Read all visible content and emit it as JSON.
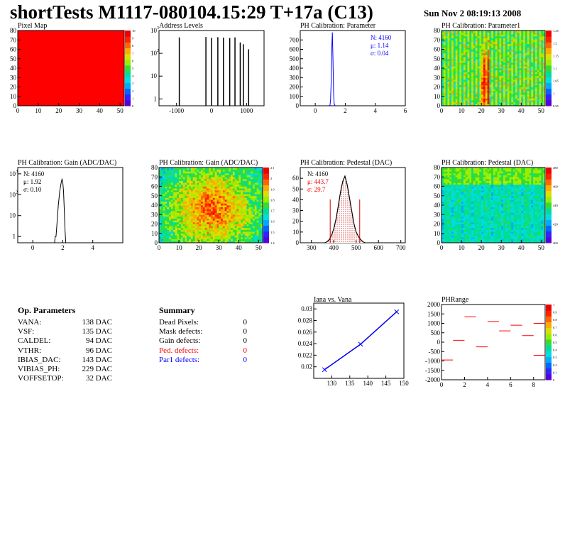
{
  "header": {
    "title": "shortTests M1117-080104.15:29 T+17a (C13)",
    "date": "Sun Nov  2 08:19:13 2008"
  },
  "panels": {
    "pixel_map": {
      "title": "Pixel Map",
      "palette_ticks": [
        "0",
        "1",
        "2",
        "3",
        "4",
        "5",
        "6",
        "7",
        "8",
        "9",
        "10"
      ]
    },
    "address_levels": {
      "title": "Address Levels"
    },
    "ph_parameter": {
      "title": "PH Calibration: Parameter",
      "stats": {
        "n": "N: 4160",
        "mu": "μ: 1.14",
        "sigma": "σ: 0.04"
      }
    },
    "ph_parameter1": {
      "title": "PH Calibration: Parameter1",
      "palette_ticks": [
        "0.95",
        "1",
        "1.05",
        "1.1",
        "1.15",
        "1.2",
        "1.25"
      ]
    },
    "gain_hist": {
      "title": "PH Calibration: Gain (ADC/DAC)",
      "stats": {
        "n": "N: 4160",
        "mu": "μ: 1.92",
        "sigma": "σ: 0.10"
      }
    },
    "gain_map": {
      "title": "PH Calibration: Gain (ADC/DAC)",
      "palette_ticks": [
        "1.4",
        "1.5",
        "1.6",
        "1.7",
        "1.8",
        "1.9",
        "2",
        "2.1"
      ]
    },
    "pedestal_hist": {
      "title": "PH Calibration: Pedestal (DAC)",
      "stats": {
        "n": "N: 4160",
        "mu": "μ: 443.7",
        "sigma": "σ: 29.7"
      }
    },
    "pedestal_map": {
      "title": "PH Calibration: Pedestal (DAC)",
      "palette_ticks": [
        "400",
        "420",
        "440",
        "460",
        "480"
      ]
    },
    "iana_vana": {
      "title": "Iana vs. Vana"
    },
    "phrange": {
      "title": "PHRange",
      "palette_ticks": [
        "0",
        "0.1",
        "0.2",
        "0.3",
        "0.4",
        "0.5",
        "0.6",
        "0.7",
        "0.8",
        "0.9",
        "1"
      ]
    }
  },
  "op_parameters": {
    "title": "Op. Parameters",
    "rows": [
      {
        "label": "VANA:",
        "value": "138 DAC"
      },
      {
        "label": "VSF:",
        "value": "135 DAC"
      },
      {
        "label": "CALDEL:",
        "value": "94 DAC"
      },
      {
        "label": "VTHR:",
        "value": "96 DAC"
      },
      {
        "label": "IBIAS_DAC:",
        "value": "143 DAC"
      },
      {
        "label": "VIBIAS_PH:",
        "value": "229 DAC"
      },
      {
        "label": "VOFFSETOP:",
        "value": "32 DAC"
      }
    ]
  },
  "summary": {
    "title": "Summary",
    "rows": [
      {
        "label": "Dead Pixels:",
        "value": "0",
        "color": "#000000"
      },
      {
        "label": "Mask defects:",
        "value": "0",
        "color": "#000000"
      },
      {
        "label": "Gain defects:",
        "value": "0",
        "color": "#000000"
      },
      {
        "label": "Ped. defects:",
        "value": "0",
        "color": "#ff0000"
      },
      {
        "label": "Par1 defects:",
        "value": "0",
        "color": "#0000ff"
      }
    ]
  },
  "chart_data": [
    {
      "id": "pixel_map",
      "type": "heatmap",
      "title": "Pixel Map",
      "xlim": [
        0,
        52
      ],
      "ylim": [
        0,
        80
      ],
      "xticks": [
        0,
        10,
        20,
        30,
        40,
        50
      ],
      "yticks": [
        0,
        10,
        20,
        30,
        40,
        50,
        60,
        70,
        80
      ],
      "uniform_value": 10,
      "zlim": [
        0,
        10
      ]
    },
    {
      "id": "address_levels",
      "type": "bar",
      "title": "Address Levels",
      "xlim": [
        -1500,
        1500
      ],
      "xticks": [
        -1000,
        0,
        1000
      ],
      "ylim": [
        0.5,
        1000
      ],
      "log_y": true,
      "peaks": [
        {
          "x": -920,
          "y": 500
        },
        {
          "x": -160,
          "y": 520
        },
        {
          "x": 0,
          "y": 480
        },
        {
          "x": 180,
          "y": 510
        },
        {
          "x": 340,
          "y": 490
        },
        {
          "x": 520,
          "y": 470
        },
        {
          "x": 670,
          "y": 500
        },
        {
          "x": 820,
          "y": 300
        },
        {
          "x": 910,
          "y": 250
        },
        {
          "x": 1060,
          "y": 150
        }
      ]
    },
    {
      "id": "ph_parameter",
      "type": "line",
      "title": "PH Calibration: Parameter",
      "xlim": [
        -1,
        6
      ],
      "xticks": [
        0,
        2,
        4,
        6
      ],
      "ylim": [
        0,
        800
      ],
      "yticks": [
        0,
        100,
        200,
        300,
        400,
        500,
        600,
        700
      ],
      "color": "#0000ff",
      "points": [
        [
          0.9,
          0
        ],
        [
          0.98,
          5
        ],
        [
          1.02,
          60
        ],
        [
          1.06,
          250
        ],
        [
          1.1,
          600
        ],
        [
          1.14,
          780
        ],
        [
          1.18,
          500
        ],
        [
          1.22,
          150
        ],
        [
          1.26,
          20
        ],
        [
          1.32,
          0
        ]
      ]
    },
    {
      "id": "ph_parameter1",
      "type": "heatmap",
      "title": "PH Calibration: Parameter1",
      "xlim": [
        0,
        52
      ],
      "ylim": [
        0,
        80
      ],
      "xticks": [
        0,
        10,
        20,
        30,
        40,
        50
      ],
      "yticks": [
        0,
        10,
        20,
        30,
        40,
        50,
        60,
        70,
        80
      ],
      "zlim": [
        0.95,
        1.25
      ]
    },
    {
      "id": "gain_hist",
      "type": "line",
      "title": "PH Calibration: Gain (ADC/DAC)",
      "xlim": [
        -1,
        6
      ],
      "xticks": [
        0,
        2,
        4
      ],
      "ylim": [
        0.5,
        2000
      ],
      "log_y": true,
      "points": [
        [
          1.45,
          0.5
        ],
        [
          1.5,
          1
        ],
        [
          1.55,
          1
        ],
        [
          1.6,
          3
        ],
        [
          1.7,
          30
        ],
        [
          1.8,
          150
        ],
        [
          1.9,
          400
        ],
        [
          1.95,
          550
        ],
        [
          2.0,
          400
        ],
        [
          2.05,
          150
        ],
        [
          2.1,
          20
        ],
        [
          2.15,
          2
        ],
        [
          2.2,
          0.5
        ]
      ]
    },
    {
      "id": "gain_map",
      "type": "heatmap",
      "title": "PH Calibration: Gain (ADC/DAC)",
      "xlim": [
        0,
        52
      ],
      "ylim": [
        0,
        80
      ],
      "xticks": [
        0,
        10,
        20,
        30,
        40,
        50
      ],
      "yticks": [
        0,
        10,
        20,
        30,
        40,
        50,
        60,
        70,
        80
      ],
      "zlim": [
        1.4,
        2.1
      ]
    },
    {
      "id": "pedestal_hist",
      "type": "line",
      "title": "PH Calibration: Pedestal (DAC)",
      "xlim": [
        250,
        720
      ],
      "xticks": [
        300,
        400,
        500,
        600,
        700
      ],
      "ylim": [
        0,
        70
      ],
      "yticks": [
        0,
        10,
        20,
        30,
        40,
        50,
        60
      ],
      "points": [
        [
          360,
          0
        ],
        [
          370,
          1
        ],
        [
          380,
          3
        ],
        [
          390,
          7
        ],
        [
          400,
          13
        ],
        [
          410,
          22
        ],
        [
          420,
          34
        ],
        [
          430,
          47
        ],
        [
          440,
          57
        ],
        [
          450,
          62
        ],
        [
          460,
          54
        ],
        [
          470,
          42
        ],
        [
          480,
          30
        ],
        [
          490,
          18
        ],
        [
          500,
          10
        ],
        [
          510,
          6
        ],
        [
          520,
          3
        ],
        [
          530,
          1
        ],
        [
          540,
          0
        ]
      ],
      "cut_lines": [
        384,
        516
      ]
    },
    {
      "id": "pedestal_map",
      "type": "heatmap",
      "title": "PH Calibration: Pedestal (DAC)",
      "xlim": [
        0,
        52
      ],
      "ylim": [
        0,
        80
      ],
      "xticks": [
        0,
        10,
        20,
        30,
        40,
        50
      ],
      "yticks": [
        0,
        10,
        20,
        30,
        40,
        50,
        60,
        70,
        80
      ],
      "zlim": [
        400,
        490
      ]
    },
    {
      "id": "iana_vana",
      "type": "line",
      "title": "Iana vs. Vana",
      "xlim": [
        125,
        150
      ],
      "xticks": [
        130,
        135,
        140,
        145,
        150
      ],
      "ylim": [
        0.018,
        0.031
      ],
      "yticks": [
        0.02,
        0.022,
        0.024,
        0.026,
        0.028,
        0.03
      ],
      "points": [
        [
          128,
          0.0195
        ],
        [
          138,
          0.0239
        ],
        [
          148,
          0.0295
        ]
      ],
      "color": "#0000ff"
    },
    {
      "id": "phrange",
      "type": "scatter",
      "title": "PHRange",
      "xlim": [
        0,
        9
      ],
      "xticks": [
        0,
        2,
        4,
        6,
        8
      ],
      "ylim": [
        -2000,
        2000
      ],
      "yticks": [
        -2000,
        -1500,
        -1000,
        -500,
        0,
        500,
        1000,
        1500,
        2000
      ],
      "segments": [
        [
          0.5,
          -950
        ],
        [
          1.5,
          100
        ],
        [
          2.5,
          1350
        ],
        [
          3.5,
          -250
        ],
        [
          4.5,
          1100
        ],
        [
          5.5,
          600
        ],
        [
          6.5,
          900
        ],
        [
          7.5,
          350
        ],
        [
          8.5,
          1000
        ],
        [
          8.5,
          -700
        ]
      ],
      "color": "#ff0000"
    }
  ]
}
